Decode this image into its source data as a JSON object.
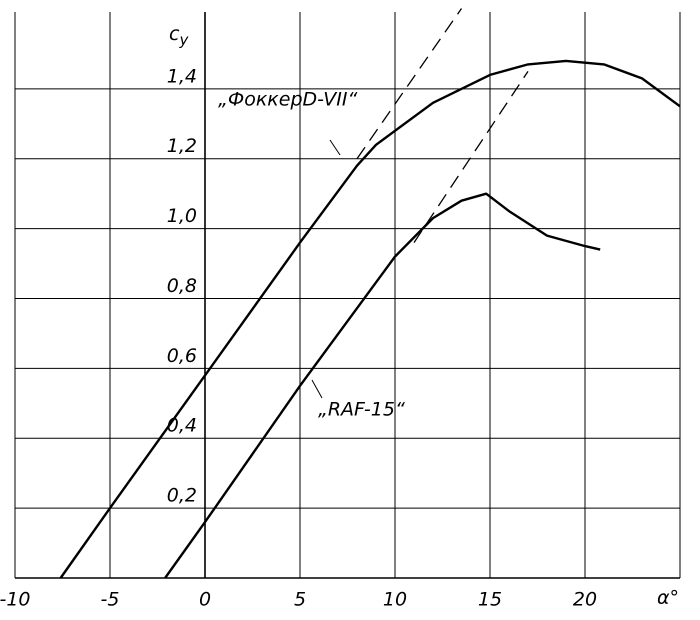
{
  "chart_data": {
    "type": "line",
    "y_label": "c",
    "y_label_sub": "y",
    "x_label": "α°",
    "xlim": [
      -10,
      25
    ],
    "ylim": [
      0,
      1.62
    ],
    "xticks": [
      -10,
      -5,
      0,
      5,
      10,
      15,
      20
    ],
    "yticks": [
      {
        "value": 0.2,
        "label": "0,2"
      },
      {
        "value": 0.4,
        "label": "0,4"
      },
      {
        "value": 0.6,
        "label": "0,6"
      },
      {
        "value": 0.8,
        "label": "0,8"
      },
      {
        "value": 1.0,
        "label": "1,0"
      },
      {
        "value": 1.2,
        "label": "1,2"
      },
      {
        "value": 1.4,
        "label": "1,4"
      }
    ],
    "grid": true,
    "color": "#000000",
    "series": [
      {
        "name": "„ФоккерD-VII“",
        "x": [
          -7.6,
          -5,
          0,
          5,
          8,
          9,
          10,
          12,
          15,
          17,
          19,
          21,
          23,
          25
        ],
        "values": [
          0,
          0.2,
          0.58,
          0.96,
          1.18,
          1.24,
          1.28,
          1.36,
          1.44,
          1.47,
          1.48,
          1.47,
          1.43,
          1.35
        ],
        "dash": false
      },
      {
        "name": "„RAF-15“",
        "x": [
          -2.1,
          0,
          5,
          10,
          12,
          13.5,
          14.8,
          16,
          18,
          20,
          20.8
        ],
        "values": [
          0,
          0.16,
          0.55,
          0.92,
          1.03,
          1.08,
          1.1,
          1.05,
          0.98,
          0.95,
          0.94
        ],
        "dash": false
      },
      {
        "x": [
          8,
          13.5
        ],
        "values": [
          1.2,
          1.63
        ],
        "dash": true
      },
      {
        "x": [
          11,
          17
        ],
        "values": [
          0.96,
          1.45
        ],
        "dash": true
      }
    ]
  }
}
